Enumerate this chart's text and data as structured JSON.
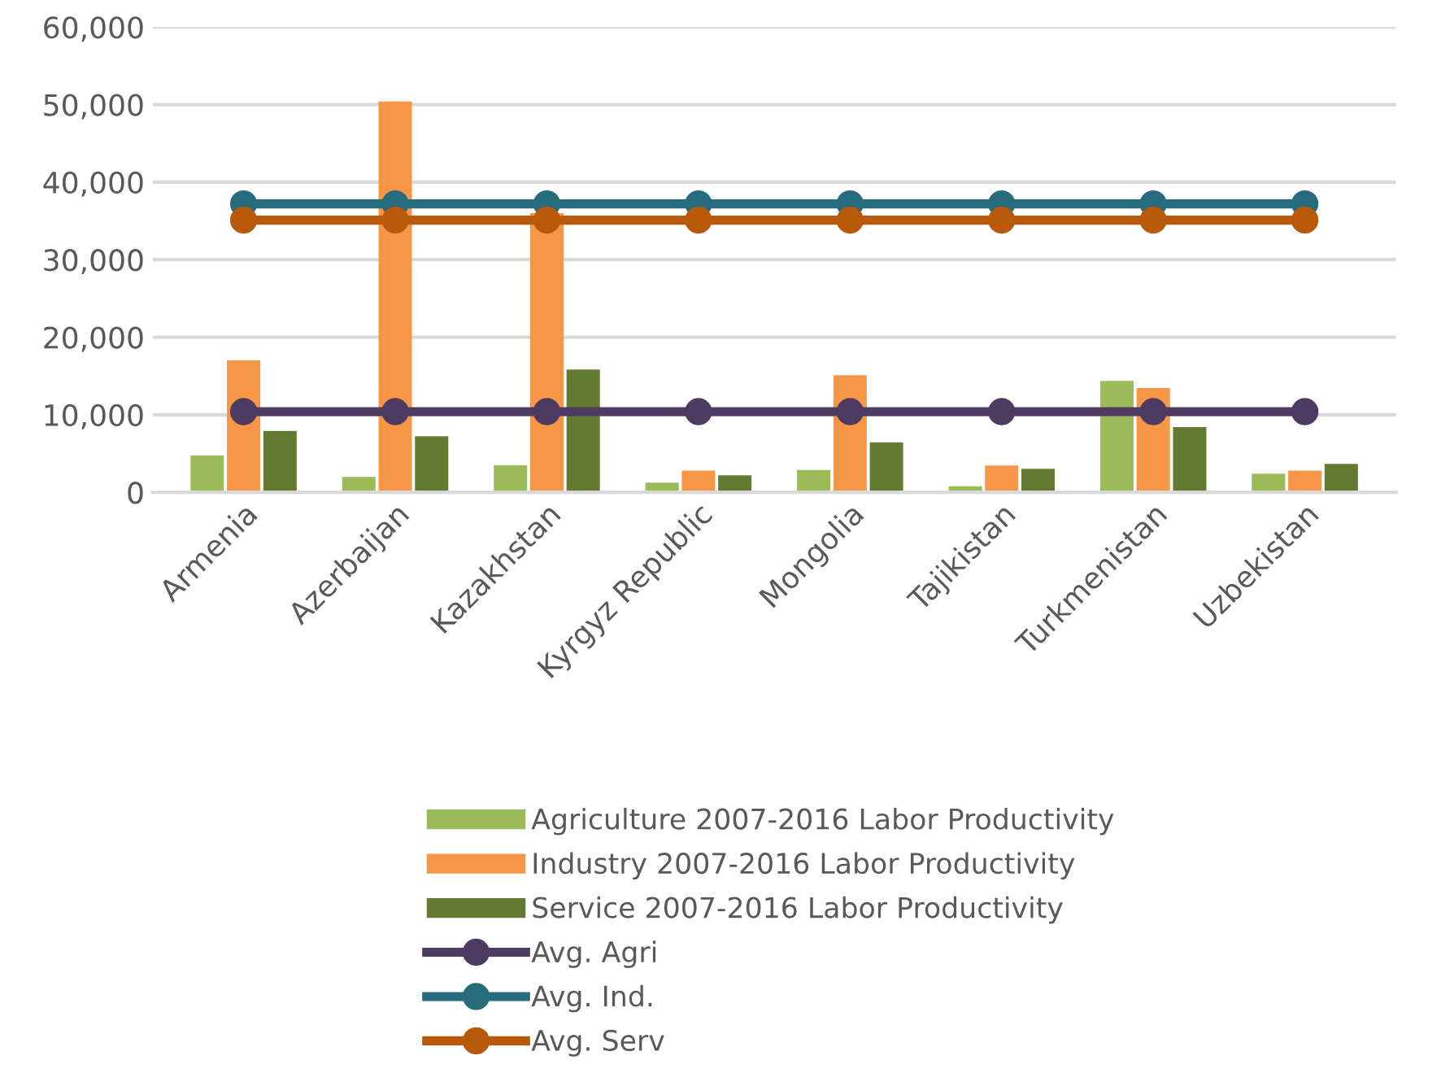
{
  "chart_data": {
    "type": "bar",
    "categories": [
      "Armenia",
      "Azerbaijan",
      "Kazakhstan",
      "Kyrgyz Republic",
      "Mongolia",
      "Tajikistan",
      "Turkmenistan",
      "Uzbekistan"
    ],
    "series": [
      {
        "name": "Agriculture 2007-2016 Labor Productivity",
        "color": "#9bbb59",
        "values": [
          4770,
          1970,
          3500,
          1260,
          2880,
          780,
          14370,
          2400
        ]
      },
      {
        "name": "Industry 2007-2016 Labor Productivity",
        "color": "#f79646",
        "values": [
          17000,
          50400,
          36000,
          2800,
          15100,
          3450,
          13450,
          2800
        ]
      },
      {
        "name": "Service 2007-2016 Labor Productivity",
        "color": "#627a31",
        "values": [
          7900,
          7230,
          15840,
          2180,
          6450,
          3030,
          8400,
          3650
        ]
      },
      {
        "name": "Avg. Agri",
        "type": "line",
        "color": "#4e3b62",
        "values": [
          10400,
          10400,
          10400,
          10400,
          10400,
          10400,
          10400,
          10400
        ]
      },
      {
        "name": "Avg. Ind.",
        "type": "line",
        "color": "#276c7c",
        "values": [
          37200,
          37200,
          37200,
          37200,
          37200,
          37200,
          37200,
          37200
        ]
      },
      {
        "name": "Avg. Serv",
        "type": "line",
        "color": "#b9590a",
        "values": [
          35100,
          35100,
          35100,
          35100,
          35100,
          35100,
          35100,
          35100
        ]
      }
    ],
    "ylim": [
      0,
      60000
    ],
    "yticks": [
      {
        "value": 0,
        "label": "0"
      },
      {
        "value": 10000,
        "label": "10,000"
      },
      {
        "value": 20000,
        "label": "20,000"
      },
      {
        "value": 30000,
        "label": "30,000"
      },
      {
        "value": 40000,
        "label": "40,000"
      },
      {
        "value": 50000,
        "label": "50,000"
      },
      {
        "value": 60000,
        "label": "60,000"
      }
    ],
    "grid": "y",
    "legend": "bottom",
    "marker": "circle",
    "line_style": "solid"
  }
}
